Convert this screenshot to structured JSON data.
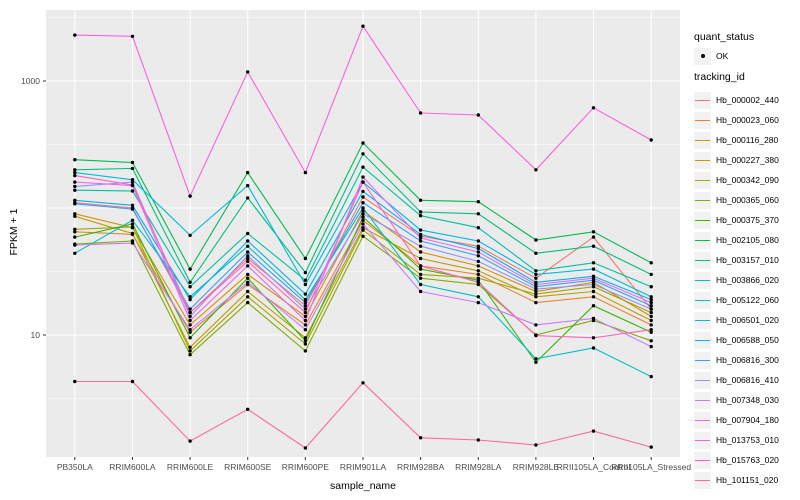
{
  "legend": {
    "quant_status": {
      "title": "quant_status",
      "items": [
        {
          "label": "OK",
          "marker": "point"
        }
      ]
    },
    "tracking_id": {
      "title": "tracking_id"
    }
  },
  "axes": {
    "x_title": "sample_name",
    "y_title": "FPKM + 1",
    "y_tick_labels": [
      "1000",
      "10"
    ]
  },
  "chart_data": {
    "type": "line",
    "title": "",
    "xlabel": "sample_name",
    "ylabel": "FPKM + 1",
    "yscale": "log10",
    "yticks": [
      1000,
      10
    ],
    "ylim": [
      1.1,
      3600
    ],
    "grid": "on",
    "legend_position": "right",
    "panel_background": "#EBEBEB",
    "gridline_color": "#FFFFFF",
    "point_color": "#000000",
    "quant_status_all_points": "OK",
    "categories": [
      "PB350LA",
      "RRIM600LA",
      "RRIM600LE",
      "RRIM600SE",
      "RRIM600PE",
      "RRIM901LA",
      "RRIM928BA",
      "RRIM928LA",
      "RRIM928LE",
      "RRII105LA_Control",
      "RRII105LA_Stressed"
    ],
    "series": [
      {
        "name": "Hb_000002_440",
        "color": "#F8766D",
        "values": [
          110,
          100,
          15,
          40,
          17,
          122,
          60,
          50,
          28,
          59,
          16
        ]
      },
      {
        "name": "Hb_000023_060",
        "color": "#EA8331",
        "values": [
          65,
          62,
          10.5,
          25,
          12,
          80,
          35,
          30,
          18,
          20,
          12
        ]
      },
      {
        "name": "Hb_000116_280",
        "color": "#D89000",
        "values": [
          90,
          70,
          12,
          30,
          14,
          95,
          45,
          35,
          22,
          26,
          14
        ]
      },
      {
        "name": "Hb_000227_380",
        "color": "#C09B00",
        "values": [
          86,
          63,
          8,
          22,
          9.5,
          70,
          40,
          32,
          20,
          22,
          13
        ]
      },
      {
        "name": "Hb_000342_090",
        "color": "#A3A500",
        "values": [
          68,
          71,
          7.5,
          20,
          8.5,
          67,
          30,
          28,
          21,
          24,
          15
        ]
      },
      {
        "name": "Hb_000365_060",
        "color": "#7CAE00",
        "values": [
          52,
          55,
          7,
          18,
          7.5,
          60,
          28,
          25,
          10,
          13,
          9
        ]
      },
      {
        "name": "Hb_000375_370",
        "color": "#39B600",
        "values": [
          59,
          75,
          9.5,
          28,
          9,
          85,
          33,
          27,
          6.1,
          17,
          10.5
        ]
      },
      {
        "name": "Hb_002105_080",
        "color": "#00BB4E",
        "values": [
          240,
          228,
          33,
          190,
          40,
          325,
          115,
          112,
          56,
          65,
          37
        ]
      },
      {
        "name": "Hb_003157_010",
        "color": "#00BF7D",
        "values": [
          200,
          205,
          26,
          120,
          31,
          267,
          93,
          90,
          44,
          50,
          30
        ]
      },
      {
        "name": "Hb_003866_020",
        "color": "#00C1A3",
        "values": [
          138,
          136,
          24,
          63,
          27,
          210,
          87,
          70,
          32,
          37,
          24
        ]
      },
      {
        "name": "Hb_005122_060",
        "color": "#00BFC4",
        "values": [
          44,
          80,
          20,
          50,
          19,
          100,
          25,
          20,
          6.5,
          7.9,
          4.7
        ]
      },
      {
        "name": "Hb_006501_020",
        "color": "#00BAE0",
        "values": [
          190,
          167,
          61,
          150,
          25,
          160,
          67,
          55,
          30,
          33,
          20
        ]
      },
      {
        "name": "Hb_006588_050",
        "color": "#00B0F6",
        "values": [
          115,
          105,
          19,
          55,
          21,
          135,
          62,
          48,
          26,
          29,
          19
        ]
      },
      {
        "name": "Hb_006816_300",
        "color": "#35A2FF",
        "values": [
          108,
          98,
          16,
          45,
          18,
          110,
          55,
          42,
          24,
          27,
          17
        ]
      },
      {
        "name": "Hb_006816_410",
        "color": "#9590FF",
        "values": [
          148,
          160,
          14,
          42,
          16,
          90,
          50,
          38,
          23,
          25,
          16
        ]
      },
      {
        "name": "Hb_007348_030",
        "color": "#C77CFF",
        "values": [
          51,
          53,
          11,
          26,
          11,
          75,
          22,
          18,
          12,
          13.5,
          8.1
        ]
      },
      {
        "name": "Hb_007904_180",
        "color": "#E76BF3",
        "values": [
          160,
          150,
          13,
          35,
          13,
          175,
          58,
          45,
          25,
          28,
          18
        ]
      },
      {
        "name": "Hb_013753_010",
        "color": "#FA62DB",
        "values": [
          2300,
          2250,
          124,
          1180,
          190,
          2700,
          560,
          540,
          200,
          615,
          343
        ]
      },
      {
        "name": "Hb_015763_020",
        "color": "#FF62BC",
        "values": [
          180,
          152,
          15,
          38,
          15,
          160,
          35,
          26,
          9.9,
          9.5,
          11
        ]
      },
      {
        "name": "Hb_101151_020",
        "color": "#FF6A98",
        "values": [
          4.3,
          4.3,
          1.46,
          2.6,
          1.29,
          4.2,
          1.55,
          1.49,
          1.36,
          1.75,
          1.31
        ]
      }
    ]
  }
}
